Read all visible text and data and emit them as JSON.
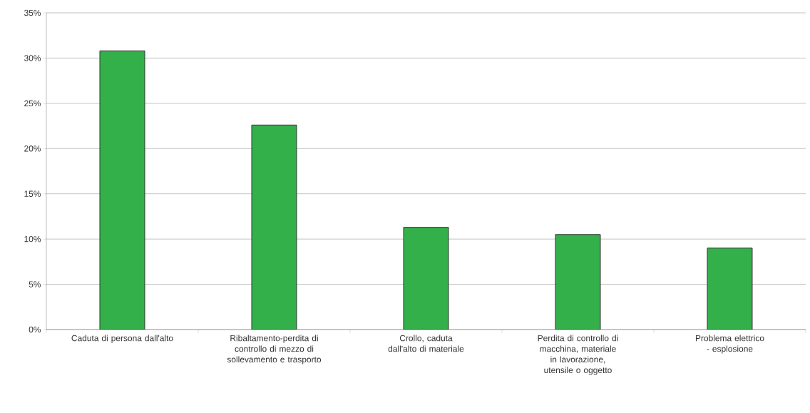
{
  "chart_data": {
    "type": "bar",
    "categories": [
      "Caduta di persona dall'alto",
      "Ribaltamento-perdita di controllo di mezzo di sollevamento e trasporto",
      "Crollo, caduta dall'alto di materiale",
      "Perdita di controllo di macchina, materiale in lavorazione, utensile o oggetto",
      "Problema elettrico - esplosione"
    ],
    "values": [
      30.8,
      22.6,
      11.3,
      10.5,
      9.0
    ],
    "color": "#33b04a",
    "ylim": [
      0,
      35
    ],
    "yticks": [
      {
        "value": 0,
        "label": "0%"
      },
      {
        "value": 5,
        "label": "5%"
      },
      {
        "value": 10,
        "label": "10%"
      },
      {
        "value": 15,
        "label": "15%"
      },
      {
        "value": 20,
        "label": "20%"
      },
      {
        "value": 25,
        "label": "25%"
      },
      {
        "value": 30,
        "label": "30%"
      },
      {
        "value": 35,
        "label": "35%"
      }
    ],
    "grid": "y"
  }
}
